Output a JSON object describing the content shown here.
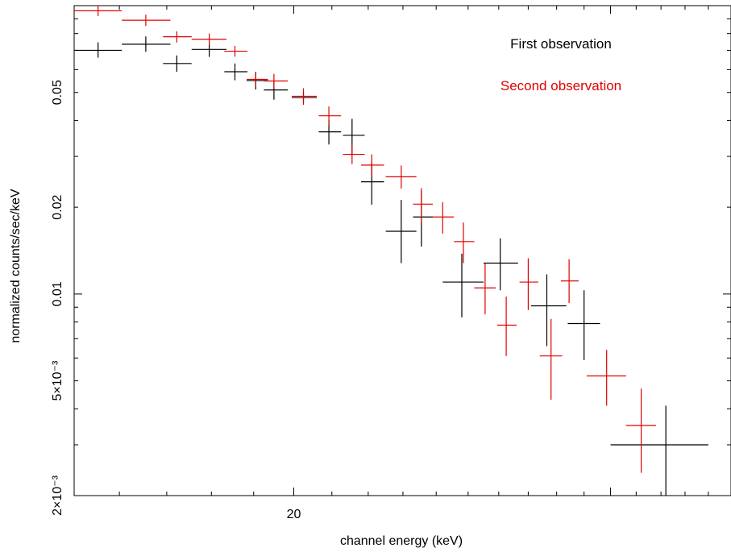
{
  "chart_data": {
    "type": "scatter",
    "x_scale": "log",
    "y_scale": "log",
    "xlim": [
      15.1,
      35.0
    ],
    "ylim": [
      0.002,
      0.1
    ],
    "xlabel": "channel energy (keV)",
    "ylabel": "normalized counts/sec/keV",
    "x_ticks": [
      {
        "value": 20,
        "label": "20"
      }
    ],
    "y_ticks": [
      {
        "value": 0.002,
        "label": "2×10⁻³"
      },
      {
        "value": 0.005,
        "label": "5×10⁻³"
      },
      {
        "value": 0.01,
        "label": "0.01"
      },
      {
        "value": 0.02,
        "label": "0.02"
      },
      {
        "value": 0.05,
        "label": "0.05"
      }
    ],
    "grid": false,
    "legend_position": "top-right",
    "legend": [
      {
        "label": "First observation",
        "color": "#000000"
      },
      {
        "label": "Second observation",
        "color": "#e00000"
      }
    ],
    "series": [
      {
        "name": "First observation",
        "color": "#000000",
        "points": [
          {
            "x": 15.57,
            "xlo": 15.1,
            "xhi": 16.05,
            "y": 0.07,
            "ylo": 0.066,
            "yhi": 0.0746
          },
          {
            "x": 16.55,
            "xlo": 16.05,
            "xhi": 17.08,
            "y": 0.0735,
            "ylo": 0.0692,
            "yhi": 0.0782
          },
          {
            "x": 17.22,
            "xlo": 16.92,
            "xhi": 17.55,
            "y": 0.063,
            "ylo": 0.059,
            "yhi": 0.0672
          },
          {
            "x": 17.95,
            "xlo": 17.55,
            "xhi": 18.35,
            "y": 0.0705,
            "ylo": 0.0664,
            "yhi": 0.0748
          },
          {
            "x": 18.55,
            "xlo": 18.3,
            "xhi": 18.85,
            "y": 0.059,
            "ylo": 0.0551,
            "yhi": 0.063
          },
          {
            "x": 19.05,
            "xlo": 18.83,
            "xhi": 19.35,
            "y": 0.055,
            "ylo": 0.0512,
            "yhi": 0.0589
          },
          {
            "x": 19.5,
            "xlo": 19.25,
            "xhi": 19.85,
            "y": 0.051,
            "ylo": 0.0472,
            "yhi": 0.055
          },
          {
            "x": 20.25,
            "xlo": 19.95,
            "xhi": 20.6,
            "y": 0.048,
            "ylo": 0.0459,
            "yhi": 0.0502
          },
          {
            "x": 20.92,
            "xlo": 20.65,
            "xhi": 21.25,
            "y": 0.0365,
            "ylo": 0.033,
            "yhi": 0.0401
          },
          {
            "x": 21.55,
            "xlo": 21.3,
            "xhi": 21.9,
            "y": 0.0355,
            "ylo": 0.0302,
            "yhi": 0.0405
          },
          {
            "x": 22.1,
            "xlo": 21.8,
            "xhi": 22.45,
            "y": 0.0245,
            "ylo": 0.0204,
            "yhi": 0.0285
          },
          {
            "x": 22.95,
            "xlo": 22.5,
            "xhi": 23.4,
            "y": 0.0165,
            "ylo": 0.0128,
            "yhi": 0.0212
          },
          {
            "x": 23.55,
            "xlo": 23.3,
            "xhi": 23.9,
            "y": 0.0185,
            "ylo": 0.0146,
            "yhi": 0.0228
          },
          {
            "x": 24.8,
            "xlo": 24.2,
            "xhi": 25.5,
            "y": 0.011,
            "ylo": 0.0083,
            "yhi": 0.0138
          },
          {
            "x": 26.05,
            "xlo": 25.5,
            "xhi": 26.65,
            "y": 0.0128,
            "ylo": 0.0103,
            "yhi": 0.0156
          },
          {
            "x": 27.65,
            "xlo": 27.1,
            "xhi": 28.35,
            "y": 0.0091,
            "ylo": 0.0066,
            "yhi": 0.0117
          },
          {
            "x": 29.0,
            "xlo": 28.4,
            "xhi": 29.6,
            "y": 0.0079,
            "ylo": 0.0059,
            "yhi": 0.0103
          },
          {
            "x": 32.2,
            "xlo": 30.0,
            "xhi": 34.0,
            "y": 0.003,
            "ylo": 0.002,
            "yhi": 0.0041
          }
        ]
      },
      {
        "name": "Second observation",
        "color": "#e00000",
        "points": [
          {
            "x": 15.57,
            "xlo": 15.1,
            "xhi": 16.05,
            "y": 0.096,
            "ylo": 0.092,
            "yhi": 0.1
          },
          {
            "x": 16.55,
            "xlo": 16.05,
            "xhi": 17.08,
            "y": 0.089,
            "ylo": 0.085,
            "yhi": 0.093
          },
          {
            "x": 17.22,
            "xlo": 16.92,
            "xhi": 17.55,
            "y": 0.078,
            "ylo": 0.0745,
            "yhi": 0.0815
          },
          {
            "x": 17.95,
            "xlo": 17.55,
            "xhi": 18.35,
            "y": 0.0765,
            "ylo": 0.073,
            "yhi": 0.08
          },
          {
            "x": 18.55,
            "xlo": 18.3,
            "xhi": 18.85,
            "y": 0.0695,
            "ylo": 0.0665,
            "yhi": 0.0725
          },
          {
            "x": 19.05,
            "xlo": 18.83,
            "xhi": 19.35,
            "y": 0.0555,
            "ylo": 0.0525,
            "yhi": 0.0585
          },
          {
            "x": 19.5,
            "xlo": 19.25,
            "xhi": 19.85,
            "y": 0.0548,
            "ylo": 0.0516,
            "yhi": 0.058
          },
          {
            "x": 20.25,
            "xlo": 19.95,
            "xhi": 20.6,
            "y": 0.0485,
            "ylo": 0.0453,
            "yhi": 0.0517
          },
          {
            "x": 20.92,
            "xlo": 20.65,
            "xhi": 21.25,
            "y": 0.0415,
            "ylo": 0.0383,
            "yhi": 0.0447
          },
          {
            "x": 21.55,
            "xlo": 21.3,
            "xhi": 21.9,
            "y": 0.0305,
            "ylo": 0.0282,
            "yhi": 0.0328
          },
          {
            "x": 22.1,
            "xlo": 21.8,
            "xhi": 22.45,
            "y": 0.028,
            "ylo": 0.0255,
            "yhi": 0.0305
          },
          {
            "x": 22.95,
            "xlo": 22.5,
            "xhi": 23.4,
            "y": 0.0255,
            "ylo": 0.0232,
            "yhi": 0.0279
          },
          {
            "x": 23.55,
            "xlo": 23.3,
            "xhi": 23.9,
            "y": 0.0205,
            "ylo": 0.0177,
            "yhi": 0.0233
          },
          {
            "x": 24.2,
            "xlo": 23.9,
            "xhi": 24.55,
            "y": 0.0185,
            "ylo": 0.0162,
            "yhi": 0.0208
          },
          {
            "x": 24.85,
            "xlo": 24.55,
            "xhi": 25.2,
            "y": 0.0152,
            "ylo": 0.0128,
            "yhi": 0.0177
          },
          {
            "x": 25.55,
            "xlo": 25.2,
            "xhi": 25.9,
            "y": 0.0105,
            "ylo": 0.0085,
            "yhi": 0.0128
          },
          {
            "x": 26.25,
            "xlo": 25.95,
            "xhi": 26.6,
            "y": 0.0078,
            "ylo": 0.0061,
            "yhi": 0.0098
          },
          {
            "x": 27.0,
            "xlo": 26.7,
            "xhi": 27.35,
            "y": 0.011,
            "ylo": 0.0088,
            "yhi": 0.0133
          },
          {
            "x": 27.8,
            "xlo": 27.4,
            "xhi": 28.2,
            "y": 0.0061,
            "ylo": 0.0043,
            "yhi": 0.0082
          },
          {
            "x": 28.45,
            "xlo": 28.15,
            "xhi": 28.8,
            "y": 0.0111,
            "ylo": 0.0093,
            "yhi": 0.0132
          },
          {
            "x": 29.85,
            "xlo": 29.1,
            "xhi": 30.6,
            "y": 0.0052,
            "ylo": 0.0041,
            "yhi": 0.0064
          },
          {
            "x": 31.2,
            "xlo": 30.6,
            "xhi": 31.8,
            "y": 0.0035,
            "ylo": 0.0024,
            "yhi": 0.0047
          }
        ]
      }
    ]
  }
}
